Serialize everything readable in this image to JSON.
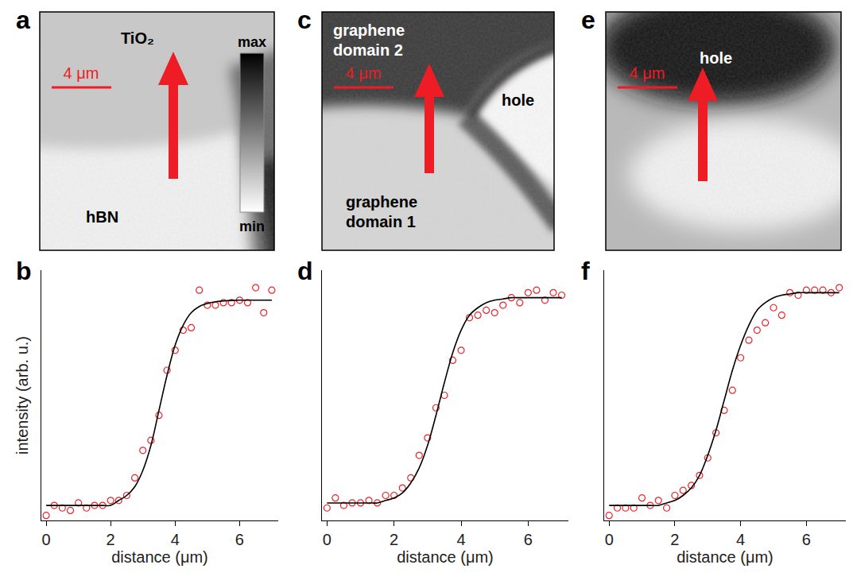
{
  "chart_data": [
    {
      "panel": "b",
      "type": "scatter",
      "x_label": "distance (μm)",
      "y_label": "intensity (arb. u.)",
      "xlim": [
        -0.15,
        7.2
      ],
      "xticks": [
        0,
        2,
        4,
        6
      ],
      "ylim": [
        0,
        1
      ],
      "yticks": [],
      "tick_labels": "x",
      "x": [
        0,
        0.25,
        0.5,
        0.75,
        1,
        1.25,
        1.5,
        1.75,
        2,
        2.25,
        2.5,
        2.75,
        3,
        3.25,
        3.5,
        3.75,
        4,
        4.25,
        4.5,
        4.75,
        5,
        5.25,
        5.5,
        5.75,
        6,
        6.25,
        6.5,
        6.75,
        7
      ],
      "series": [
        {
          "type": "scatter",
          "marker": "open circle",
          "color": "#e8252a",
          "values": [
            0.02,
            0.06,
            0.05,
            0.04,
            0.07,
            0.05,
            0.06,
            0.06,
            0.08,
            0.08,
            0.1,
            0.17,
            0.28,
            0.32,
            0.42,
            0.6,
            0.68,
            0.76,
            0.77,
            0.92,
            0.86,
            0.86,
            0.87,
            0.87,
            0.88,
            0.87,
            0.93,
            0.83,
            0.92
          ]
        },
        {
          "type": "line",
          "line_style": "solid",
          "color": "#000000",
          "values": [
            0.06,
            0.06,
            0.06,
            0.06,
            0.06,
            0.06,
            0.06,
            0.06,
            0.06,
            0.08,
            0.1,
            0.135,
            0.2,
            0.3,
            0.44,
            0.58,
            0.7,
            0.78,
            0.83,
            0.855,
            0.867,
            0.874,
            0.877,
            0.879,
            0.88,
            0.88,
            0.88,
            0.88,
            0.88
          ]
        }
      ]
    },
    {
      "panel": "d",
      "type": "scatter",
      "x_label": "distance (μm)",
      "xlim": [
        -0.15,
        7.2
      ],
      "xticks": [
        0,
        2,
        4,
        6
      ],
      "ylim": [
        0,
        1
      ],
      "yticks": [],
      "tick_labels": "x",
      "x": [
        0,
        0.25,
        0.5,
        0.75,
        1,
        1.25,
        1.5,
        1.75,
        2,
        2.25,
        2.5,
        2.75,
        3,
        3.25,
        3.5,
        3.75,
        4,
        4.25,
        4.5,
        4.75,
        5,
        5.25,
        5.5,
        5.75,
        6,
        6.25,
        6.5,
        6.75,
        7
      ],
      "series": [
        {
          "type": "scatter",
          "marker": "open circle",
          "color": "#e8252a",
          "values": [
            0.05,
            0.09,
            0.06,
            0.07,
            0.07,
            0.08,
            0.07,
            0.1,
            0.1,
            0.13,
            0.17,
            0.26,
            0.33,
            0.45,
            0.5,
            0.64,
            0.68,
            0.81,
            0.82,
            0.84,
            0.83,
            0.86,
            0.89,
            0.87,
            0.91,
            0.92,
            0.88,
            0.91,
            0.9
          ]
        },
        {
          "type": "line",
          "line_style": "solid",
          "color": "#000000",
          "values": [
            0.07,
            0.07,
            0.07,
            0.07,
            0.07,
            0.07,
            0.07,
            0.08,
            0.09,
            0.11,
            0.15,
            0.21,
            0.3,
            0.42,
            0.55,
            0.67,
            0.76,
            0.82,
            0.85,
            0.87,
            0.88,
            0.885,
            0.89,
            0.89,
            0.89,
            0.89,
            0.89,
            0.89,
            0.89
          ]
        }
      ]
    },
    {
      "panel": "f",
      "type": "scatter",
      "x_label": "distance (μm)",
      "xlim": [
        -0.15,
        7.2
      ],
      "xticks": [
        0,
        2,
        4,
        6
      ],
      "ylim": [
        0,
        1
      ],
      "yticks": [],
      "tick_labels": "x",
      "x": [
        0,
        0.25,
        0.5,
        0.75,
        1,
        1.25,
        1.5,
        1.75,
        2,
        2.25,
        2.5,
        2.75,
        3,
        3.25,
        3.5,
        3.75,
        4,
        4.25,
        4.5,
        4.75,
        5,
        5.25,
        5.5,
        5.75,
        6,
        6.25,
        6.5,
        6.75,
        7
      ],
      "series": [
        {
          "type": "scatter",
          "marker": "open circle",
          "color": "#e8252a",
          "values": [
            0.02,
            0.05,
            0.05,
            0.05,
            0.09,
            0.06,
            0.08,
            0.05,
            0.1,
            0.12,
            0.14,
            0.18,
            0.25,
            0.35,
            0.44,
            0.52,
            0.65,
            0.72,
            0.76,
            0.79,
            0.85,
            0.82,
            0.91,
            0.9,
            0.92,
            0.92,
            0.92,
            0.91,
            0.93
          ]
        },
        {
          "type": "line",
          "line_style": "solid",
          "color": "#000000",
          "values": [
            0.06,
            0.06,
            0.06,
            0.06,
            0.06,
            0.06,
            0.06,
            0.07,
            0.08,
            0.1,
            0.13,
            0.18,
            0.26,
            0.36,
            0.48,
            0.6,
            0.7,
            0.78,
            0.84,
            0.87,
            0.89,
            0.9,
            0.905,
            0.91,
            0.91,
            0.91,
            0.91,
            0.91,
            0.91
          ]
        }
      ]
    }
  ],
  "images": [
    {
      "panel": "a",
      "scale_bar": "4 μm",
      "labels": [
        "TiO₂",
        "hBN"
      ],
      "colorbar": {
        "max": "max",
        "min": "min"
      }
    },
    {
      "panel": "c",
      "scale_bar": "4 μm",
      "labels": [
        "graphene domain 2",
        "hole",
        "graphene domain 1"
      ]
    },
    {
      "panel": "e",
      "scale_bar": "4 μm",
      "labels": [
        "hole"
      ]
    }
  ]
}
